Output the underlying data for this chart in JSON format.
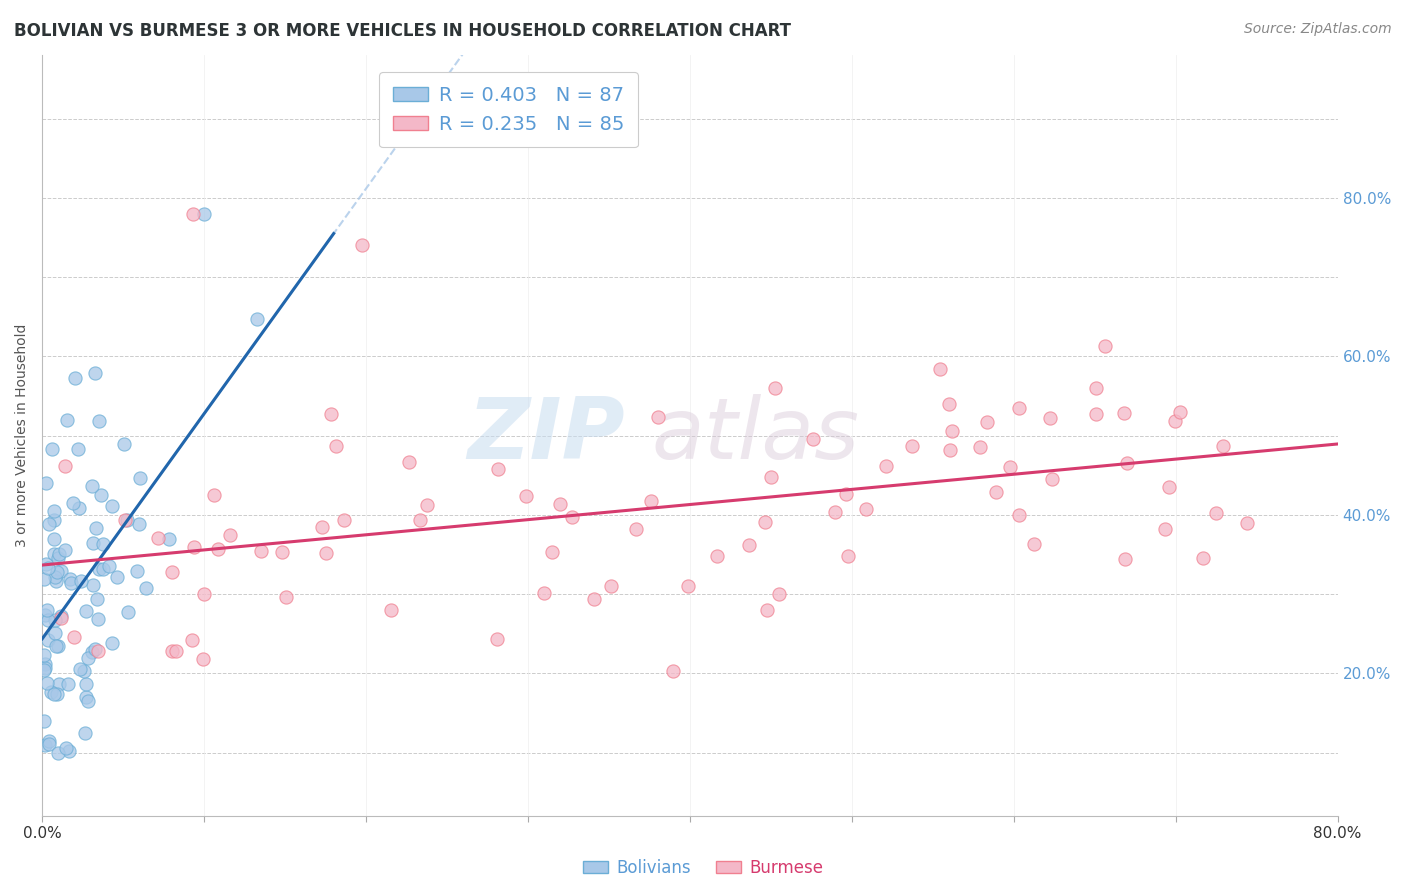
{
  "title": "BOLIVIAN VS BURMESE 3 OR MORE VEHICLES IN HOUSEHOLD CORRELATION CHART",
  "source": "Source: ZipAtlas.com",
  "ylabel": "3 or more Vehicles in Household",
  "watermark_zip": "ZIP",
  "watermark_atlas": "atlas",
  "xlim": [
    0.0,
    0.8
  ],
  "ylim": [
    -0.08,
    0.88
  ],
  "bolivians_R": 0.403,
  "bolivians_N": 87,
  "burmese_R": 0.235,
  "burmese_N": 85,
  "bolivians_color": "#a8c8e8",
  "bolivians_color_edge": "#6baed6",
  "bolivians_line_color": "#2166ac",
  "burmese_color": "#f4b8c8",
  "burmese_color_edge": "#f08090",
  "burmese_line_color": "#d63b6e",
  "title_fontsize": 12,
  "source_fontsize": 10,
  "axis_label_fontsize": 10,
  "legend_fontsize": 14,
  "tick_fontsize": 11
}
